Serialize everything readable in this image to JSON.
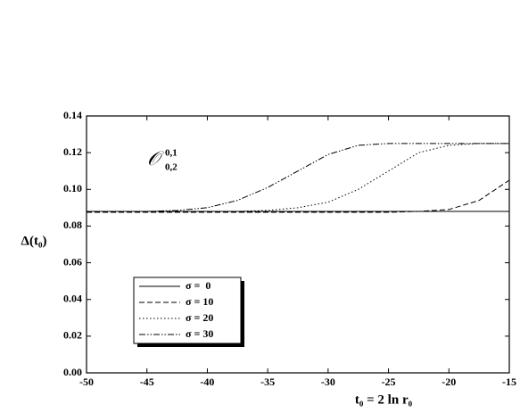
{
  "chart_data": {
    "type": "line",
    "x_label": "t₀ = 2 ln r₀",
    "y_label": "Δ(t₀)",
    "annotation": {
      "symbol": "𝒪",
      "superscript": "0,1",
      "subscript": "0,2"
    },
    "x": [
      -50,
      -47.5,
      -45,
      -42.5,
      -40,
      -37.5,
      -35,
      -32.5,
      -30,
      -27.5,
      -25,
      -22.5,
      -20,
      -17.5,
      -15
    ],
    "series": [
      {
        "name": "σ =  0",
        "color": "#000000",
        "style": "solid",
        "values": [
          0.088,
          0.088,
          0.088,
          0.088,
          0.088,
          0.088,
          0.088,
          0.088,
          0.088,
          0.088,
          0.088,
          0.088,
          0.088,
          0.088,
          0.088
        ]
      },
      {
        "name": "σ = 10",
        "color": "#000000",
        "style": "dashed",
        "values": [
          0.0875,
          0.0875,
          0.0875,
          0.0875,
          0.0875,
          0.0875,
          0.0875,
          0.0875,
          0.0875,
          0.0875,
          0.0875,
          0.088,
          0.089,
          0.094,
          0.105
        ]
      },
      {
        "name": "σ = 20",
        "color": "#000000",
        "style": "dotted",
        "values": [
          0.088,
          0.088,
          0.088,
          0.088,
          0.088,
          0.088,
          0.0885,
          0.09,
          0.093,
          0.1,
          0.11,
          0.12,
          0.124,
          0.125,
          0.125
        ]
      },
      {
        "name": "σ = 30",
        "color": "#000000",
        "style": "dashdotdot",
        "values": [
          0.088,
          0.088,
          0.088,
          0.0885,
          0.09,
          0.094,
          0.101,
          0.11,
          0.119,
          0.124,
          0.125,
          0.125,
          0.125,
          0.125,
          0.125
        ]
      }
    ],
    "xlim": [
      -50,
      -15
    ],
    "xticks": [
      -50,
      -45,
      -40,
      -35,
      -30,
      -25,
      -20,
      -15
    ],
    "ylim": [
      0,
      0.14
    ],
    "yticks": [
      {
        "value": 0,
        "label": "0.00"
      },
      {
        "value": 0.02,
        "label": "0.02"
      },
      {
        "value": 0.04,
        "label": "0.04"
      },
      {
        "value": 0.06,
        "label": "0.06"
      },
      {
        "value": 0.08,
        "label": "0.08"
      },
      {
        "value": 0.1,
        "label": "0.10"
      },
      {
        "value": 0.12,
        "label": "0.12"
      },
      {
        "value": 0.14,
        "label": "0.14"
      }
    ],
    "legend": "lower-left",
    "grid": false
  }
}
